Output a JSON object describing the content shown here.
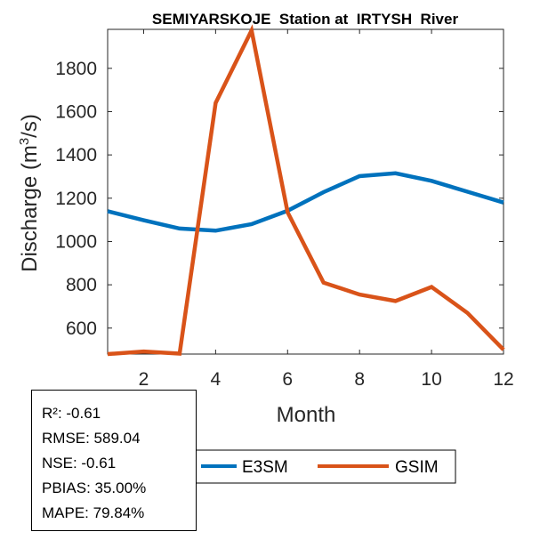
{
  "chart_data": {
    "type": "line",
    "title": "SEMIYARSKOJE  Station at  IRTYSH  River",
    "xlabel": "Month",
    "ylabel_main": "Discharge (m",
    "ylabel_sup": "3",
    "ylabel_end": "/s)",
    "xlim": [
      1,
      12
    ],
    "ylim": [
      480,
      1980
    ],
    "xticks": [
      2,
      4,
      6,
      8,
      10,
      12
    ],
    "yticks": [
      600,
      800,
      1000,
      1200,
      1400,
      1600,
      1800
    ],
    "x": [
      1,
      2,
      3,
      4,
      5,
      6,
      7,
      8,
      9,
      10,
      11,
      12
    ],
    "series": [
      {
        "name": "E3SM",
        "color": "#0072BD",
        "values": [
          1140,
          1098,
          1060,
          1050,
          1080,
          1142,
          1228,
          1302,
          1315,
          1280,
          1230,
          1180
        ]
      },
      {
        "name": "GSIM",
        "color": "#D95319",
        "values": [
          480,
          492,
          482,
          1640,
          1975,
          1135,
          810,
          755,
          725,
          790,
          670,
          500
        ]
      }
    ],
    "legend": "bottom-right",
    "grid": false
  },
  "stats": {
    "r2": "R²: -0.61",
    "rmse": "RMSE: 589.04",
    "nse": "NSE: -0.61",
    "pbias": "PBIAS: 35.00%",
    "mape": "MAPE: 79.84%"
  }
}
